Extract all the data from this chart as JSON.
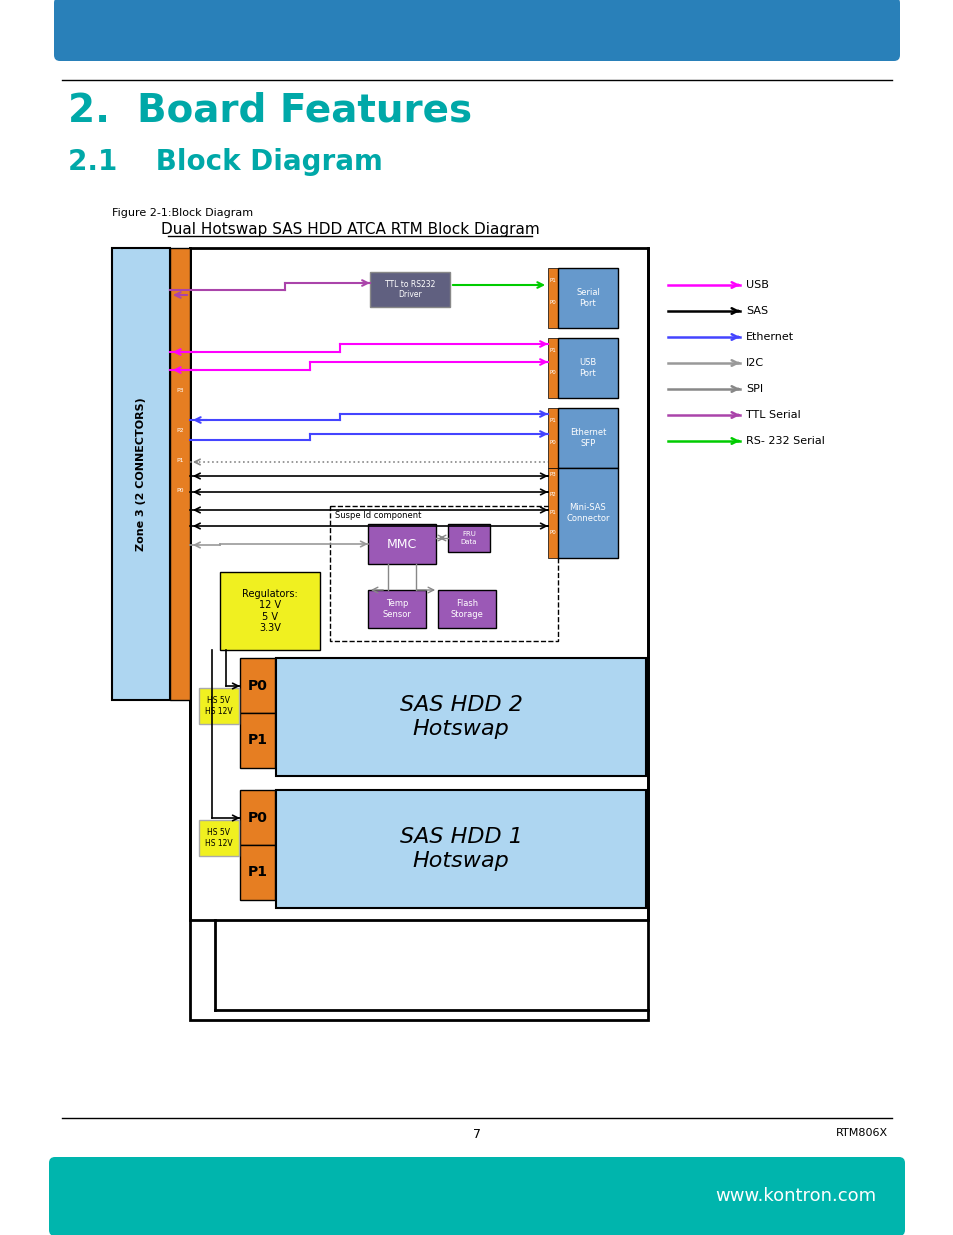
{
  "title": "Dual Hotswap SAS HDD ATCA RTM Block Diagram",
  "fig_label": "Figure 2-1:Block Diagram",
  "header_title": "2.  Board Features",
  "header_subtitle": "2.1    Block Diagram",
  "header_color_top": "#2980b9",
  "footer_color": "#00b5ad",
  "footer_text": "www.kontron.com",
  "page_number": "7",
  "page_ref": "RTM806X",
  "bg_color": "#ffffff",
  "zone3_color": "#aed6f1",
  "zone3_text": "Zone 3 (2 CONNECTORS)",
  "orange_color": "#e67e22",
  "yellow_color": "#f0f020",
  "purple_color": "#9b59b6",
  "lightblue_color": "#aed6f1",
  "darkblue_color": "#6699cc",
  "green_color": "#00cc00",
  "gray_color": "#808080",
  "ttl_box_color": "#606080",
  "legend_items": [
    {
      "label": "USB",
      "color": "#ff00ff"
    },
    {
      "label": "SAS",
      "color": "#000000"
    },
    {
      "label": "Ethernet",
      "color": "#4444ff"
    },
    {
      "label": "I2C",
      "color": "#999999"
    },
    {
      "label": "SPI",
      "color": "#888888"
    },
    {
      "label": "TTL Serial",
      "color": "#aa44aa"
    },
    {
      "label": "RS- 232 Serial",
      "color": "#00cc00"
    }
  ]
}
